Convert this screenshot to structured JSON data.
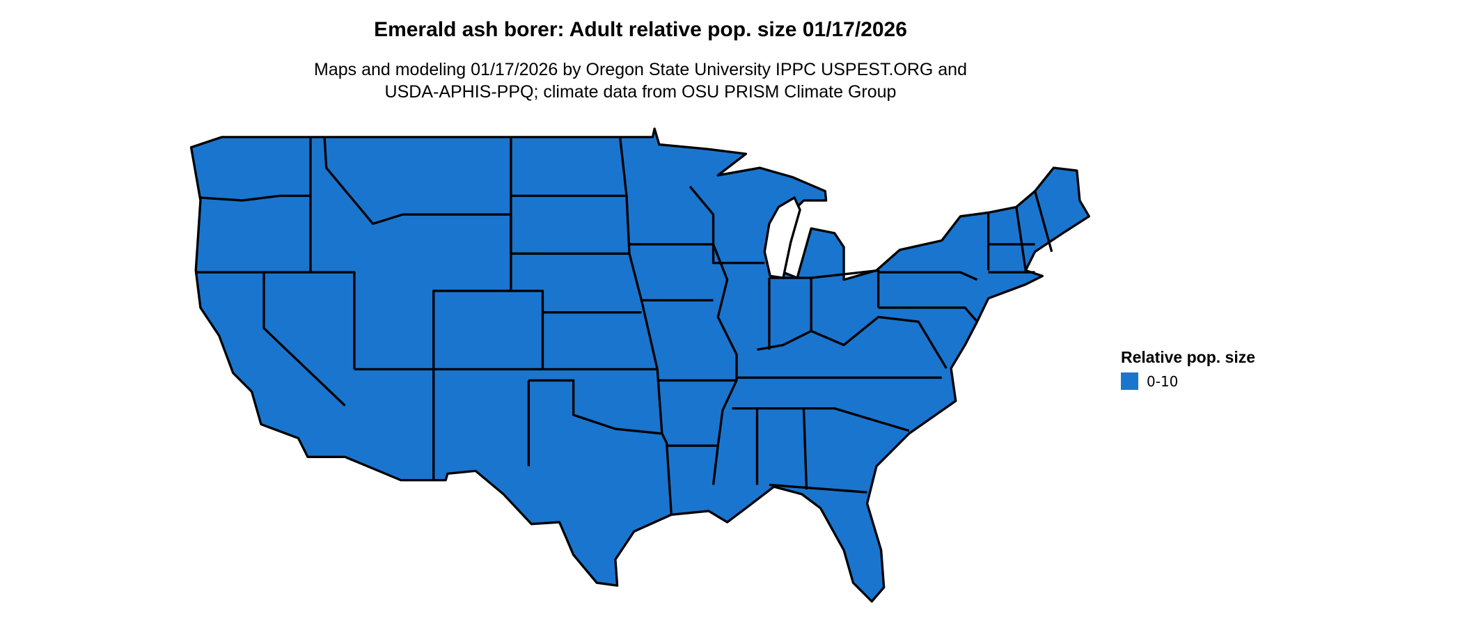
{
  "title": "Emerald ash borer: Adult relative pop. size 01/17/2026",
  "subtitle_line1": "Maps and modeling 01/17/2026 by Oregon State University IPPC USPEST.ORG and",
  "subtitle_line2": "USDA-APHIS-PPQ; climate data from OSU PRISM Climate Group",
  "map": {
    "region": "Contiguous United States",
    "fill_color": "#1a75cf",
    "border_color": "#000000"
  },
  "legend": {
    "title": "Relative pop. size",
    "items": [
      {
        "label": "0-10",
        "color": "#1a75cf"
      }
    ]
  }
}
